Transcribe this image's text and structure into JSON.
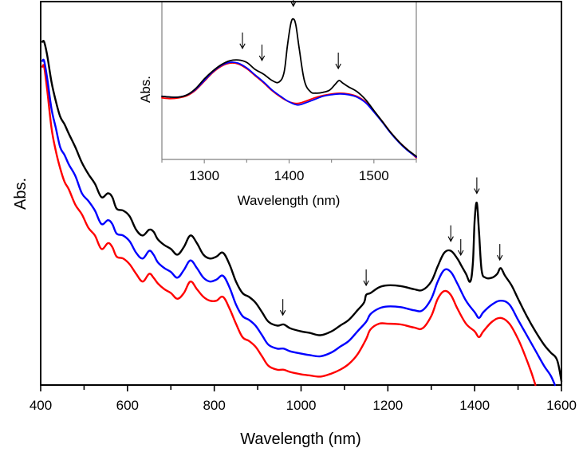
{
  "chart_data": [
    {
      "id": "main",
      "type": "line",
      "title": "",
      "xlabel": "Wavelength (nm)",
      "ylabel": "Abs.",
      "xlim": [
        400,
        1600
      ],
      "ylim": [
        0,
        1
      ],
      "xticks": [
        400,
        600,
        800,
        1000,
        1200,
        1400,
        1600
      ],
      "xminor_step": 100,
      "y_tick_labels": false,
      "grid": false,
      "legend": null,
      "series": [
        {
          "name": "black",
          "color": "#000000",
          "x": [
            404,
            408,
            415,
            425,
            435,
            445,
            455,
            465,
            480,
            495,
            510,
            525,
            540,
            555,
            565,
            575,
            590,
            605,
            620,
            635,
            650,
            660,
            670,
            685,
            700,
            715,
            730,
            745,
            760,
            775,
            790,
            805,
            820,
            835,
            850,
            865,
            880,
            895,
            910,
            925,
            945,
            960,
            975,
            1000,
            1020,
            1045,
            1070,
            1090,
            1110,
            1130,
            1145,
            1150,
            1160,
            1180,
            1200,
            1230,
            1260,
            1280,
            1300,
            1315,
            1330,
            1345,
            1360,
            1370,
            1380,
            1390,
            1396,
            1400,
            1405,
            1410,
            1416,
            1425,
            1440,
            1452,
            1460,
            1470,
            1485,
            1500,
            1520,
            1540,
            1560,
            1575,
            1590,
            1600
          ],
          "y": [
            0.895,
            0.895,
            0.86,
            0.79,
            0.74,
            0.7,
            0.68,
            0.655,
            0.62,
            0.58,
            0.55,
            0.525,
            0.49,
            0.5,
            0.49,
            0.46,
            0.455,
            0.44,
            0.405,
            0.39,
            0.405,
            0.4,
            0.38,
            0.365,
            0.355,
            0.34,
            0.36,
            0.39,
            0.37,
            0.34,
            0.33,
            0.335,
            0.345,
            0.315,
            0.27,
            0.24,
            0.23,
            0.215,
            0.19,
            0.165,
            0.155,
            0.158,
            0.148,
            0.14,
            0.136,
            0.13,
            0.14,
            0.155,
            0.17,
            0.195,
            0.215,
            0.235,
            0.24,
            0.255,
            0.26,
            0.258,
            0.25,
            0.248,
            0.27,
            0.31,
            0.345,
            0.35,
            0.33,
            0.31,
            0.29,
            0.27,
            0.32,
            0.43,
            0.475,
            0.4,
            0.3,
            0.28,
            0.28,
            0.29,
            0.305,
            0.285,
            0.26,
            0.225,
            0.18,
            0.14,
            0.105,
            0.085,
            0.065,
            0.01
          ]
        },
        {
          "name": "blue",
          "color": "#0000ff",
          "x": [
            404,
            408,
            415,
            425,
            435,
            445,
            455,
            465,
            480,
            495,
            510,
            525,
            540,
            555,
            565,
            575,
            590,
            605,
            620,
            635,
            650,
            660,
            670,
            685,
            700,
            715,
            730,
            745,
            760,
            775,
            790,
            805,
            820,
            835,
            850,
            865,
            880,
            895,
            910,
            925,
            945,
            960,
            975,
            1000,
            1020,
            1045,
            1070,
            1090,
            1110,
            1130,
            1150,
            1160,
            1180,
            1200,
            1230,
            1260,
            1280,
            1300,
            1315,
            1330,
            1345,
            1360,
            1380,
            1400,
            1410,
            1420,
            1440,
            1460,
            1480,
            1500,
            1520,
            1540,
            1560,
            1575,
            1585
          ],
          "y": [
            0.845,
            0.845,
            0.8,
            0.72,
            0.67,
            0.62,
            0.6,
            0.575,
            0.545,
            0.5,
            0.48,
            0.455,
            0.42,
            0.43,
            0.42,
            0.395,
            0.39,
            0.375,
            0.345,
            0.33,
            0.35,
            0.34,
            0.32,
            0.305,
            0.295,
            0.28,
            0.3,
            0.325,
            0.305,
            0.28,
            0.27,
            0.275,
            0.285,
            0.255,
            0.21,
            0.18,
            0.17,
            0.155,
            0.13,
            0.105,
            0.095,
            0.095,
            0.088,
            0.082,
            0.078,
            0.075,
            0.085,
            0.1,
            0.115,
            0.14,
            0.165,
            0.185,
            0.2,
            0.205,
            0.203,
            0.195,
            0.195,
            0.225,
            0.27,
            0.3,
            0.295,
            0.265,
            0.22,
            0.19,
            0.175,
            0.19,
            0.21,
            0.22,
            0.21,
            0.17,
            0.13,
            0.09,
            0.05,
            0.025,
            0.0
          ]
        },
        {
          "name": "red",
          "color": "#ff0000",
          "x": [
            404,
            408,
            415,
            425,
            435,
            445,
            455,
            465,
            480,
            495,
            510,
            525,
            540,
            555,
            565,
            575,
            590,
            605,
            620,
            635,
            650,
            660,
            670,
            685,
            700,
            715,
            730,
            745,
            760,
            775,
            790,
            805,
            820,
            835,
            850,
            865,
            880,
            895,
            910,
            925,
            945,
            960,
            975,
            1000,
            1020,
            1045,
            1070,
            1090,
            1110,
            1130,
            1150,
            1160,
            1180,
            1200,
            1230,
            1260,
            1280,
            1300,
            1315,
            1330,
            1345,
            1360,
            1380,
            1400,
            1410,
            1420,
            1440,
            1460,
            1480,
            1500,
            1515,
            1530,
            1540
          ],
          "y": [
            0.83,
            0.83,
            0.77,
            0.67,
            0.61,
            0.565,
            0.53,
            0.51,
            0.47,
            0.445,
            0.41,
            0.39,
            0.355,
            0.37,
            0.36,
            0.335,
            0.33,
            0.315,
            0.29,
            0.27,
            0.29,
            0.28,
            0.265,
            0.25,
            0.24,
            0.225,
            0.24,
            0.27,
            0.25,
            0.23,
            0.22,
            0.22,
            0.23,
            0.2,
            0.16,
            0.125,
            0.115,
            0.1,
            0.075,
            0.05,
            0.04,
            0.04,
            0.034,
            0.028,
            0.025,
            0.022,
            0.03,
            0.04,
            0.055,
            0.08,
            0.12,
            0.145,
            0.16,
            0.16,
            0.158,
            0.15,
            0.148,
            0.18,
            0.225,
            0.245,
            0.235,
            0.2,
            0.16,
            0.14,
            0.125,
            0.14,
            0.165,
            0.175,
            0.16,
            0.12,
            0.08,
            0.035,
            0.0
          ]
        }
      ],
      "annotations": [
        {
          "type": "arrow",
          "x": 958,
          "label": ""
        },
        {
          "type": "arrow",
          "x": 1150,
          "label": ""
        },
        {
          "type": "arrow",
          "x": 1345,
          "label": ""
        },
        {
          "type": "arrow",
          "x": 1368,
          "label": ""
        },
        {
          "type": "arrow",
          "x": 1405,
          "label": ""
        },
        {
          "type": "arrow",
          "x": 1458,
          "label": ""
        }
      ]
    },
    {
      "id": "inset",
      "type": "line",
      "title": "",
      "xlabel": "Wavelength (nm)",
      "ylabel": "Abs.",
      "xlim": [
        1250,
        1550
      ],
      "ylim": [
        0,
        1
      ],
      "xticks": [
        1300,
        1400,
        1500
      ],
      "xminor_step": 50,
      "y_tick_labels": false,
      "grid": false,
      "legend": null,
      "series": [
        {
          "name": "black",
          "color": "#000000",
          "x": [
            1250,
            1260,
            1270,
            1280,
            1290,
            1300,
            1310,
            1320,
            1330,
            1340,
            1350,
            1360,
            1370,
            1380,
            1388,
            1394,
            1398,
            1402,
            1405,
            1408,
            1412,
            1418,
            1425,
            1432,
            1440,
            1448,
            1455,
            1459,
            1463,
            1470,
            1480,
            1490,
            1500,
            1510,
            1520,
            1530,
            1540,
            1550
          ],
          "y": [
            0.4,
            0.395,
            0.395,
            0.41,
            0.45,
            0.51,
            0.56,
            0.6,
            0.625,
            0.63,
            0.615,
            0.57,
            0.54,
            0.5,
            0.49,
            0.55,
            0.72,
            0.86,
            0.89,
            0.85,
            0.7,
            0.5,
            0.43,
            0.42,
            0.425,
            0.44,
            0.48,
            0.5,
            0.485,
            0.46,
            0.43,
            0.38,
            0.31,
            0.24,
            0.17,
            0.11,
            0.06,
            0.02
          ]
        },
        {
          "name": "blue",
          "color": "#0000ff",
          "x": [
            1250,
            1260,
            1270,
            1280,
            1290,
            1300,
            1310,
            1320,
            1330,
            1340,
            1350,
            1360,
            1370,
            1380,
            1390,
            1400,
            1410,
            1420,
            1430,
            1440,
            1450,
            1460,
            1470,
            1480,
            1490,
            1500,
            1510,
            1520,
            1530,
            1540,
            1550
          ],
          "y": [
            0.4,
            0.395,
            0.395,
            0.41,
            0.445,
            0.5,
            0.555,
            0.595,
            0.615,
            0.61,
            0.58,
            0.535,
            0.49,
            0.44,
            0.4,
            0.365,
            0.345,
            0.36,
            0.38,
            0.4,
            0.41,
            0.415,
            0.41,
            0.395,
            0.36,
            0.3,
            0.235,
            0.165,
            0.105,
            0.055,
            0.015
          ]
        },
        {
          "name": "red",
          "color": "#ff0000",
          "x": [
            1250,
            1260,
            1270,
            1280,
            1290,
            1300,
            1310,
            1320,
            1330,
            1340,
            1350,
            1360,
            1370,
            1380,
            1390,
            1400,
            1410,
            1420,
            1430,
            1440,
            1450,
            1460,
            1470,
            1480,
            1490,
            1500,
            1510,
            1520,
            1530,
            1540,
            1550
          ],
          "y": [
            0.39,
            0.385,
            0.39,
            0.405,
            0.44,
            0.495,
            0.55,
            0.59,
            0.61,
            0.605,
            0.575,
            0.53,
            0.485,
            0.435,
            0.395,
            0.365,
            0.355,
            0.37,
            0.39,
            0.405,
            0.415,
            0.42,
            0.415,
            0.4,
            0.365,
            0.305,
            0.24,
            0.17,
            0.11,
            0.06,
            0.01
          ]
        }
      ],
      "annotations": [
        {
          "type": "arrow",
          "x": 1345,
          "label": ""
        },
        {
          "type": "arrow",
          "x": 1368,
          "label": ""
        },
        {
          "type": "arrow",
          "x": 1405,
          "label": ""
        },
        {
          "type": "arrow",
          "x": 1458,
          "label": ""
        }
      ]
    }
  ]
}
